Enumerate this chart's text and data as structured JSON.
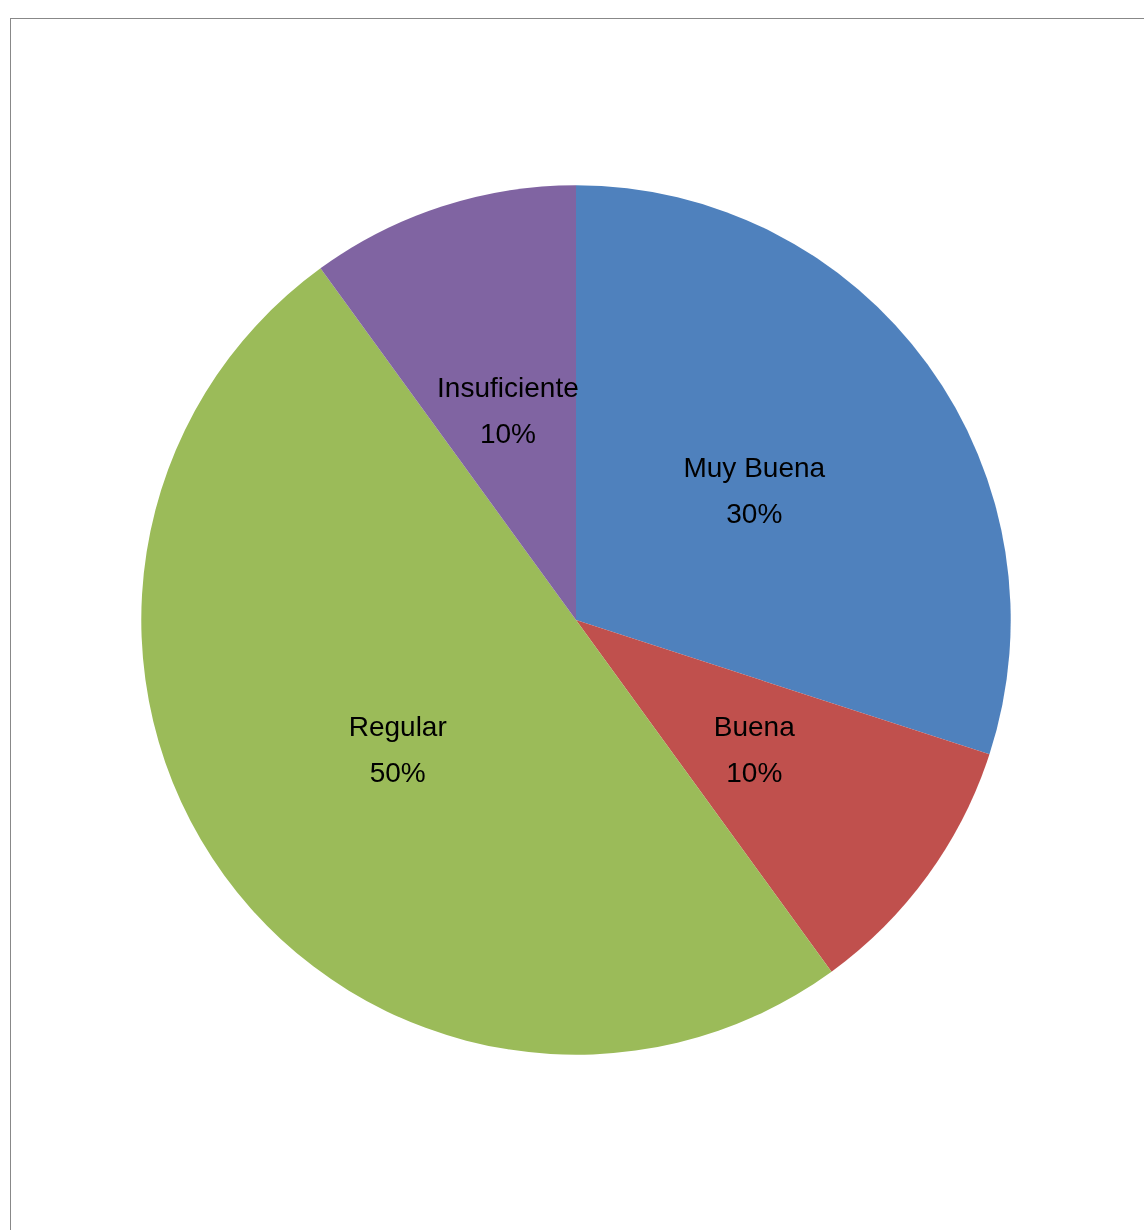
{
  "chart_data": {
    "type": "pie",
    "categories": [
      "Muy Buena",
      "Buena",
      "Regular",
      "Insuficiente"
    ],
    "values": [
      30,
      10,
      50,
      10
    ],
    "value_labels": [
      "30%",
      "10%",
      "50%",
      "10%"
    ],
    "colors": [
      "#4f81bd",
      "#c0504d",
      "#9bbb59",
      "#8064a2"
    ],
    "legend": false
  }
}
